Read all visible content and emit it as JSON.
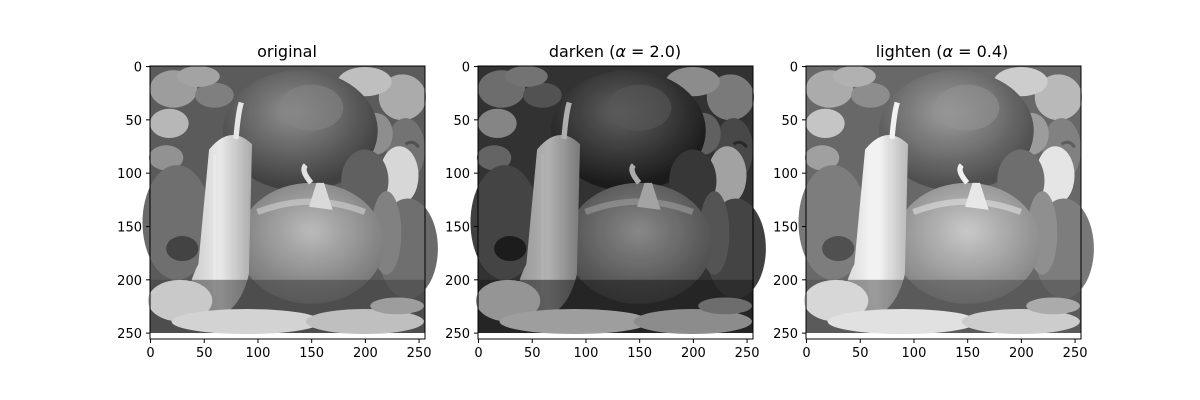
{
  "chart_data": [
    {
      "type": "image",
      "title": "original",
      "alpha": null,
      "image_size": [
        256,
        256
      ],
      "xlim": [
        0,
        255
      ],
      "ylim": [
        255,
        0
      ],
      "xticks": [
        0,
        50,
        100,
        150,
        200,
        250
      ],
      "yticks": [
        0,
        50,
        100,
        150,
        200,
        250
      ],
      "colormap": "gray",
      "grid": false
    },
    {
      "type": "image",
      "title_prefix": "darken (",
      "title_symbol": "α",
      "title_suffix": " = 2.0)",
      "alpha": 2.0,
      "image_size": [
        256,
        256
      ],
      "xlim": [
        0,
        255
      ],
      "ylim": [
        255,
        0
      ],
      "xticks": [
        0,
        50,
        100,
        150,
        200,
        250
      ],
      "yticks": [
        0,
        50,
        100,
        150,
        200,
        250
      ],
      "colormap": "gray",
      "grid": false
    },
    {
      "type": "image",
      "title_prefix": "lighten (",
      "title_symbol": "α",
      "title_suffix": " = 0.4)",
      "alpha": 0.4,
      "image_size": [
        256,
        256
      ],
      "xlim": [
        0,
        255
      ],
      "ylim": [
        255,
        0
      ],
      "xticks": [
        0,
        50,
        100,
        150,
        200,
        250
      ],
      "yticks": [
        0,
        50,
        100,
        150,
        200,
        250
      ],
      "colormap": "gray",
      "grid": false
    }
  ]
}
